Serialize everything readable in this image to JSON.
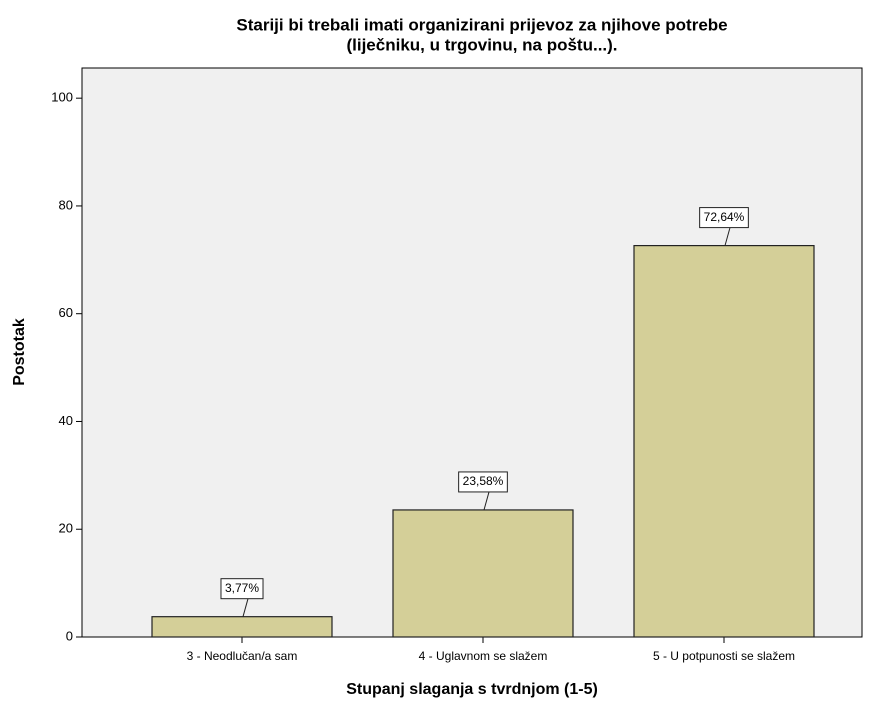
{
  "chart_data": {
    "type": "bar",
    "title": [
      "Stariji bi trebali imati organizirani prijevoz za njihove potrebe",
      "(liječniku, u trgovinu, na poštu...)."
    ],
    "x_label": "Stupanj slaganja s tvrdnjom (1-5)",
    "y_label": "Postotak",
    "categories": [
      "3 - Neodlučan/a sam",
      "4 - Uglavnom se slažem",
      "5 - U potpunosti se slažem"
    ],
    "values": [
      3.77,
      23.58,
      72.64
    ],
    "value_labels": [
      "3,77%",
      "23,58%",
      "72,64%"
    ],
    "color": "#d4cf98",
    "ylim": [
      0,
      105.6
    ],
    "yticks": [
      0,
      20,
      40,
      60,
      80,
      100
    ],
    "grid": false
  }
}
